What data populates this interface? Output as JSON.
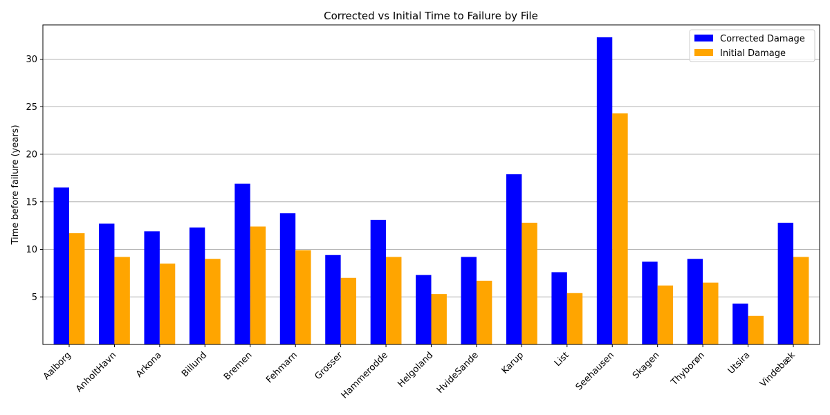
{
  "chart_data": {
    "type": "bar",
    "title": "Corrected vs Initial Time to Failure by File",
    "xlabel": "",
    "ylabel": "Time before failure (years)",
    "categories": [
      "Aalborg",
      "AnholtHavn",
      "Arkona",
      "Billund",
      "Bremen",
      "Fehmarn",
      "Grosser",
      "Hammerodde",
      "Helgoland",
      "HvideSande",
      "Karup",
      "List",
      "Seehausen",
      "Skagen",
      "Thyborøn",
      "Utsira",
      "Vindebæk"
    ],
    "series": [
      {
        "name": "Corrected Damage",
        "color": "#0000ff",
        "values": [
          16.5,
          12.7,
          11.9,
          12.3,
          16.9,
          13.8,
          9.4,
          13.1,
          7.3,
          9.2,
          17.9,
          7.6,
          32.3,
          8.7,
          9.0,
          4.3,
          12.8
        ]
      },
      {
        "name": "Initial Damage",
        "color": "#ffa500",
        "values": [
          11.7,
          9.2,
          8.5,
          9.0,
          12.4,
          9.9,
          7.0,
          9.2,
          5.3,
          6.7,
          12.8,
          5.4,
          24.3,
          6.2,
          6.5,
          3.0,
          9.2
        ]
      }
    ],
    "ylim": [
      0,
      33.6
    ],
    "yticks": [
      5,
      10,
      15,
      20,
      25,
      30
    ],
    "grid": "y",
    "legend": "top-right"
  }
}
